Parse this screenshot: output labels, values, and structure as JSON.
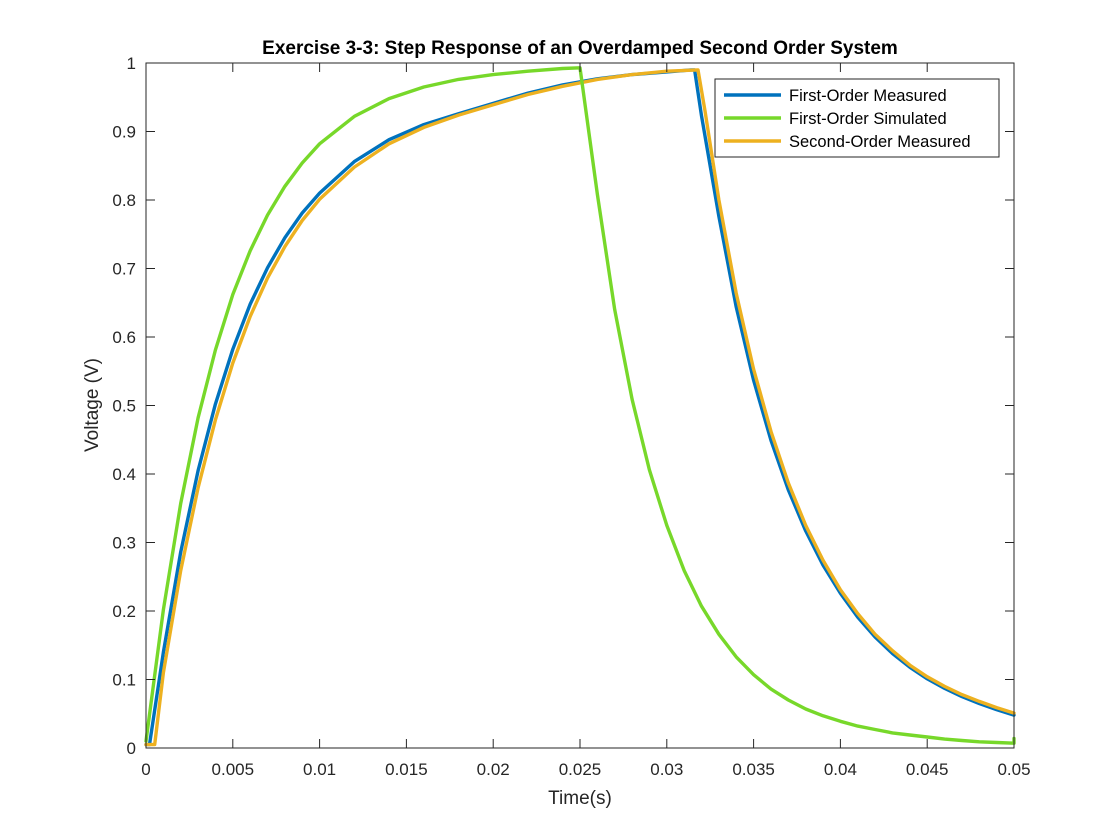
{
  "chart_data": {
    "type": "line",
    "title": "Exercise 3-3: Step Response of an Overdamped Second Order System",
    "xlabel": "Time(s)",
    "ylabel": "Voltage (V)",
    "xlim": [
      0,
      0.05
    ],
    "ylim": [
      0,
      1
    ],
    "xticks": [
      0,
      0.005,
      0.01,
      0.015,
      0.02,
      0.025,
      0.03,
      0.035,
      0.04,
      0.045,
      0.05
    ],
    "yticks": [
      0,
      0.1,
      0.2,
      0.3,
      0.4,
      0.5,
      0.6,
      0.7,
      0.8,
      0.9,
      1
    ],
    "xtick_labels": [
      "0",
      "0.005",
      "0.01",
      "0.015",
      "0.02",
      "0.025",
      "0.03",
      "0.035",
      "0.04",
      "0.045",
      "0.05"
    ],
    "ytick_labels": [
      "0",
      "0.1",
      "0.2",
      "0.3",
      "0.4",
      "0.5",
      "0.6",
      "0.7",
      "0.8",
      "0.9",
      "1"
    ],
    "grid": false,
    "legend_position": "top-right",
    "series": [
      {
        "name": "First-Order Measured",
        "color": "#0072BD",
        "x": [
          0,
          0.0002,
          0.001,
          0.002,
          0.003,
          0.004,
          0.005,
          0.006,
          0.007,
          0.008,
          0.009,
          0.01,
          0.012,
          0.014,
          0.016,
          0.018,
          0.02,
          0.022,
          0.024,
          0.026,
          0.028,
          0.03,
          0.0314,
          0.0316,
          0.032,
          0.033,
          0.034,
          0.035,
          0.036,
          0.037,
          0.038,
          0.039,
          0.04,
          0.041,
          0.042,
          0.043,
          0.044,
          0.045,
          0.046,
          0.047,
          0.048,
          0.049,
          0.05
        ],
        "y": [
          0.005,
          0.005,
          0.14,
          0.286,
          0.405,
          0.502,
          0.582,
          0.648,
          0.701,
          0.745,
          0.781,
          0.81,
          0.856,
          0.888,
          0.91,
          0.926,
          0.941,
          0.956,
          0.968,
          0.977,
          0.983,
          0.987,
          0.99,
          0.99,
          0.923,
          0.776,
          0.644,
          0.537,
          0.449,
          0.377,
          0.317,
          0.267,
          0.226,
          0.191,
          0.162,
          0.138,
          0.118,
          0.101,
          0.087,
          0.075,
          0.065,
          0.056,
          0.048
        ]
      },
      {
        "name": "First-Order Simulated",
        "color": "#77D82A",
        "x": [
          0,
          0.001,
          0.002,
          0.003,
          0.004,
          0.005,
          0.006,
          0.007,
          0.008,
          0.009,
          0.01,
          0.012,
          0.014,
          0.016,
          0.018,
          0.02,
          0.022,
          0.024,
          0.025,
          0.0251,
          0.026,
          0.027,
          0.028,
          0.029,
          0.03,
          0.031,
          0.032,
          0.033,
          0.034,
          0.035,
          0.036,
          0.037,
          0.038,
          0.039,
          0.04,
          0.041,
          0.042,
          0.043,
          0.044,
          0.045,
          0.046,
          0.047,
          0.048,
          0.049,
          0.05,
          0.05
        ],
        "y": [
          0.01,
          0.202,
          0.357,
          0.482,
          0.581,
          0.662,
          0.726,
          0.778,
          0.82,
          0.854,
          0.882,
          0.922,
          0.948,
          0.965,
          0.976,
          0.983,
          0.988,
          0.992,
          0.993,
          0.975,
          0.808,
          0.64,
          0.509,
          0.406,
          0.325,
          0.259,
          0.207,
          0.166,
          0.133,
          0.107,
          0.086,
          0.07,
          0.057,
          0.047,
          0.039,
          0.032,
          0.027,
          0.022,
          0.019,
          0.016,
          0.013,
          0.011,
          0.009,
          0.008,
          0.007,
          0.014
        ]
      },
      {
        "name": "Second-Order Measured",
        "color": "#EDB120",
        "x": [
          0,
          0.0005,
          0.001,
          0.002,
          0.003,
          0.004,
          0.005,
          0.006,
          0.007,
          0.008,
          0.009,
          0.01,
          0.012,
          0.014,
          0.016,
          0.018,
          0.02,
          0.022,
          0.024,
          0.026,
          0.028,
          0.03,
          0.0318,
          0.0322,
          0.033,
          0.034,
          0.035,
          0.036,
          0.037,
          0.038,
          0.039,
          0.04,
          0.041,
          0.042,
          0.043,
          0.044,
          0.045,
          0.046,
          0.047,
          0.048,
          0.049,
          0.05
        ],
        "y": [
          0.005,
          0.005,
          0.11,
          0.259,
          0.38,
          0.479,
          0.562,
          0.63,
          0.686,
          0.732,
          0.77,
          0.801,
          0.848,
          0.882,
          0.906,
          0.924,
          0.939,
          0.954,
          0.966,
          0.976,
          0.983,
          0.988,
          0.99,
          0.93,
          0.8,
          0.664,
          0.553,
          0.462,
          0.387,
          0.325,
          0.274,
          0.231,
          0.196,
          0.166,
          0.142,
          0.121,
          0.104,
          0.09,
          0.078,
          0.068,
          0.059,
          0.051
        ]
      }
    ]
  }
}
